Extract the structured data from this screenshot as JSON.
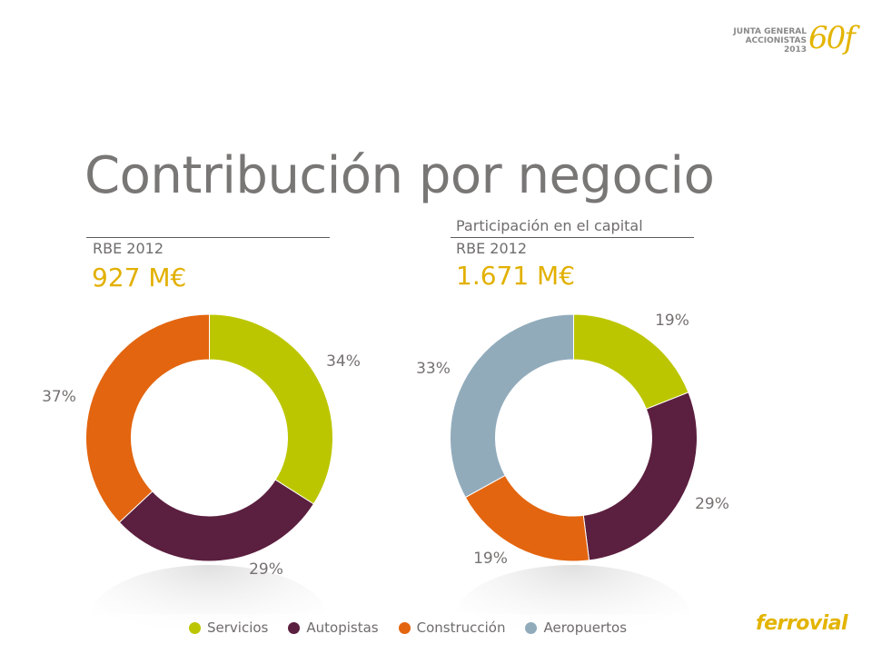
{
  "header": {
    "event_line1": "JUNTA GENERAL",
    "event_line2": "ACCIONISTAS",
    "event_year": "2013",
    "anniversary": "60f"
  },
  "title": "Contribución por negocio",
  "colors": {
    "Servicios": "#bcc600",
    "Autopistas": "#5b1f3f",
    "Construcción": "#e3650f",
    "Aeropuertos": "#91abbb",
    "accent": "#e2b000"
  },
  "legend": [
    "Servicios",
    "Autopistas",
    "Construcción",
    "Aeropuertos"
  ],
  "chart_data": [
    {
      "type": "pie",
      "donut": true,
      "caption": "",
      "subtitle": "RBE 2012",
      "total": "927 M€",
      "categories": [
        "Servicios",
        "Autopistas",
        "Construcción"
      ],
      "values": [
        34,
        29,
        37
      ],
      "labels": [
        "34%",
        "29%",
        "37%"
      ]
    },
    {
      "type": "pie",
      "donut": true,
      "caption": "Participación en el capital",
      "subtitle": "RBE 2012",
      "total": "1.671 M€",
      "categories": [
        "Servicios",
        "Autopistas",
        "Construcción",
        "Aeropuertos"
      ],
      "values": [
        19,
        29,
        19,
        33
      ],
      "labels": [
        "19%",
        "29%",
        "19%",
        "33%"
      ]
    }
  ],
  "brand": "ferrovial"
}
